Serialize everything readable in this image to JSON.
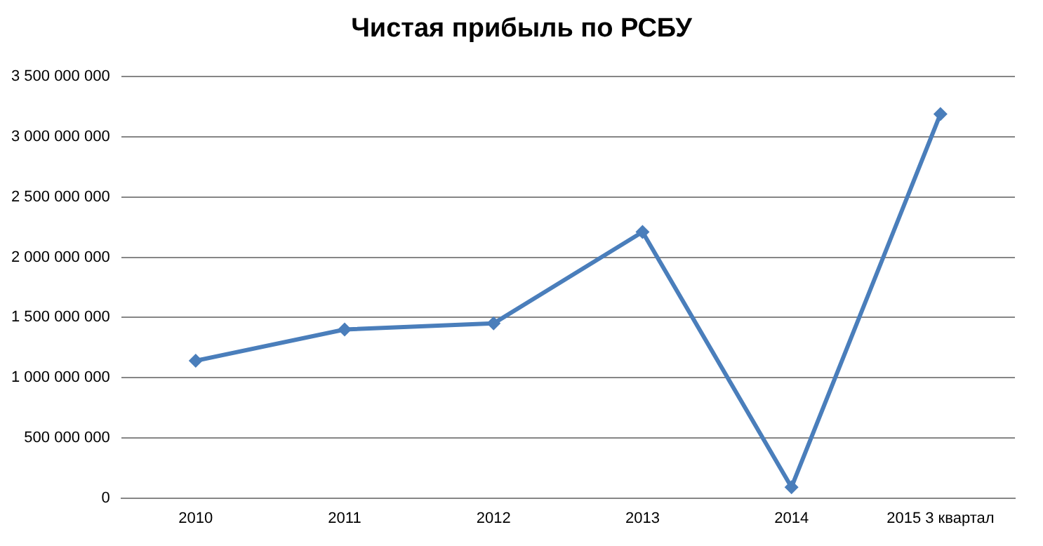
{
  "chart_data": {
    "type": "line",
    "title": "Чистая прибыль по РСБУ",
    "categories": [
      "2010",
      "2011",
      "2012",
      "2013",
      "2014",
      "2015 3 квартал"
    ],
    "series": [
      {
        "color": "#4a7ebb",
        "values": [
          1140000000,
          1400000000,
          1450000000,
          2210000000,
          90000000,
          3190000000
        ]
      }
    ],
    "ylim": [
      0,
      3500000000
    ],
    "yticks": [
      {
        "value": 0,
        "label": "0"
      },
      {
        "value": 500000000,
        "label": "500 000 000"
      },
      {
        "value": 1000000000,
        "label": "1 000 000 000"
      },
      {
        "value": 1500000000,
        "label": "1 500 000 000"
      },
      {
        "value": 2000000000,
        "label": "2 000 000 000"
      },
      {
        "value": 2500000000,
        "label": "2 500 000 000"
      },
      {
        "value": 3000000000,
        "label": "3 000 000 000"
      },
      {
        "value": 3500000000,
        "label": "3 500 000 000"
      }
    ],
    "grid": "y",
    "legend": false,
    "marker": "diamond",
    "line_style": "solid"
  }
}
